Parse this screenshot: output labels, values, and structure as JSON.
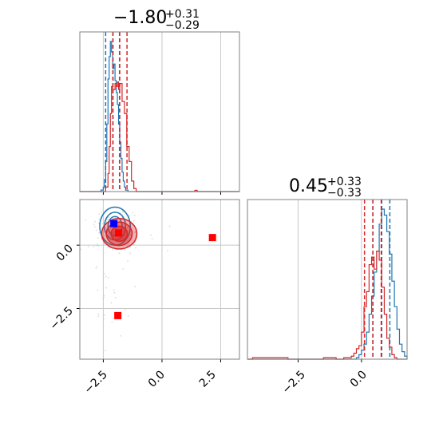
{
  "chart_data": {
    "type": "corner",
    "parameters": [
      {
        "title_main": "−1.80",
        "title_sup": "+0.31",
        "title_sub": "−0.29",
        "median": -1.8,
        "lower_err": 0.29,
        "upper_err": 0.31
      },
      {
        "title_main": "0.45",
        "title_sup": "+0.33",
        "title_sub": "−0.33",
        "median": 0.45,
        "lower_err": 0.33,
        "upper_err": 0.33
      }
    ],
    "panels": [
      {
        "id": "hist-param1",
        "type": "histogram",
        "xlim": [
          -3.5,
          3.3
        ],
        "grid": true,
        "series": [
          {
            "color": "#1f77b4",
            "bins": [
              [
                -3.5,
                0
              ],
              [
                -2.7,
                0
              ],
              [
                -2.6,
                0.01
              ],
              [
                -2.5,
                0.03
              ],
              [
                -2.45,
                0.08
              ],
              [
                -2.4,
                0.2
              ],
              [
                -2.35,
                0.45
              ],
              [
                -2.3,
                0.75
              ],
              [
                -2.25,
                0.9
              ],
              [
                -2.2,
                1.0
              ],
              [
                -2.15,
                0.93
              ],
              [
                -2.1,
                0.82
              ],
              [
                -2.05,
                0.85
              ],
              [
                -2.0,
                0.74
              ],
              [
                -1.95,
                0.66
              ],
              [
                -1.9,
                0.58
              ],
              [
                -1.85,
                0.45
              ],
              [
                -1.8,
                0.33
              ],
              [
                -1.75,
                0.22
              ],
              [
                -1.7,
                0.13
              ],
              [
                -1.65,
                0.07
              ],
              [
                -1.6,
                0.03
              ],
              [
                -1.55,
                0.01
              ],
              [
                -1.45,
                0
              ],
              [
                3.3,
                0
              ]
            ],
            "quantile_lines": [
              -2.4,
              -2.09,
              -1.81
            ]
          },
          {
            "color": "#d62728",
            "bins": [
              [
                -3.5,
                0
              ],
              [
                -2.5,
                0
              ],
              [
                -2.4,
                0.03
              ],
              [
                -2.3,
                0.12
              ],
              [
                -2.25,
                0.3
              ],
              [
                -2.2,
                0.52
              ],
              [
                -2.15,
                0.7
              ],
              [
                -2.1,
                0.68
              ],
              [
                -2.0,
                0.72
              ],
              [
                -1.95,
                0.7
              ],
              [
                -1.9,
                0.73
              ],
              [
                -1.85,
                0.68
              ],
              [
                -1.8,
                0.72
              ],
              [
                -1.7,
                0.6
              ],
              [
                -1.6,
                0.52
              ],
              [
                -1.5,
                0.3
              ],
              [
                -1.4,
                0.2
              ],
              [
                -1.3,
                0.07
              ],
              [
                -1.2,
                0.02
              ],
              [
                -1.1,
                0
              ],
              [
                1.3,
                0
              ],
              [
                1.4,
                0.008
              ],
              [
                1.5,
                0
              ],
              [
                3.3,
                0
              ]
            ],
            "quantile_lines": [
              -2.09,
              -1.8,
              -1.49
            ]
          }
        ]
      },
      {
        "id": "hist-param2",
        "type": "histogram",
        "xlim": [
          -4.5,
          1.8
        ],
        "grid": true,
        "series": [
          {
            "color": "#1f77b4",
            "bins": [
              [
                -4.5,
                0
              ],
              [
                -0.3,
                0
              ],
              [
                -0.2,
                0.01
              ],
              [
                -0.1,
                0.03
              ],
              [
                0.0,
                0.06
              ],
              [
                0.1,
                0.1
              ],
              [
                0.2,
                0.18
              ],
              [
                0.3,
                0.3
              ],
              [
                0.4,
                0.42
              ],
              [
                0.5,
                0.58
              ],
              [
                0.6,
                0.72
              ],
              [
                0.7,
                0.9
              ],
              [
                0.8,
                1.0
              ],
              [
                0.9,
                0.96
              ],
              [
                1.0,
                0.85
              ],
              [
                1.1,
                0.7
              ],
              [
                1.2,
                0.52
              ],
              [
                1.3,
                0.35
              ],
              [
                1.4,
                0.2
              ],
              [
                1.5,
                0.1
              ],
              [
                1.6,
                0.05
              ],
              [
                1.7,
                0.02
              ],
              [
                1.8,
                0
              ]
            ],
            "quantile_lines": [
              0.45,
              0.8,
              1.12
            ]
          },
          {
            "color": "#d62728",
            "bins": [
              [
                -4.5,
                0
              ],
              [
                -4.3,
                0.01
              ],
              [
                -3.3,
                0.01
              ],
              [
                -2.9,
                0
              ],
              [
                -1.6,
                0
              ],
              [
                -1.5,
                0.01
              ],
              [
                -1.0,
                0
              ],
              [
                -0.7,
                0.01
              ],
              [
                -0.4,
                0.02
              ],
              [
                -0.3,
                0.04
              ],
              [
                -0.2,
                0.07
              ],
              [
                -0.1,
                0.09
              ],
              [
                0.0,
                0.18
              ],
              [
                0.1,
                0.35
              ],
              [
                0.2,
                0.45
              ],
              [
                0.3,
                0.63
              ],
              [
                0.4,
                0.68
              ],
              [
                0.5,
                0.6
              ],
              [
                0.6,
                0.72
              ],
              [
                0.7,
                0.66
              ],
              [
                0.8,
                0.48
              ],
              [
                0.9,
                0.3
              ],
              [
                1.0,
                0.14
              ],
              [
                1.1,
                0.08
              ],
              [
                1.2,
                0.03
              ],
              [
                1.3,
                0.01
              ],
              [
                1.4,
                0
              ],
              [
                1.8,
                0
              ]
            ],
            "quantile_lines": [
              0.12,
              0.45,
              0.78
            ]
          }
        ]
      },
      {
        "id": "scatter-2d",
        "type": "scatter-contour",
        "xlim": [
          -3.5,
          3.3
        ],
        "ylim": [
          -4.5,
          1.8
        ],
        "grid": true,
        "xticks": [
          -2.5,
          0.0,
          2.5
        ],
        "yticks": [
          -2.5,
          0.0
        ],
        "markers": [
          {
            "color": "#0000ff",
            "shape": "square",
            "x": -2.05,
            "y": 0.85
          },
          {
            "color": "#ff0000",
            "shape": "square",
            "x": -1.85,
            "y": 0.48
          },
          {
            "color": "#ff0000",
            "shape": "square",
            "x": 2.15,
            "y": 0.3
          },
          {
            "color": "#ff0000",
            "shape": "square",
            "x": -1.88,
            "y": -2.78
          }
        ],
        "contours": [
          {
            "color": "#1f77b4",
            "center": [
              -2.0,
              0.75
            ],
            "radii": [
              [
                0.65,
                0.75
              ],
              [
                0.45,
                0.55
              ],
              [
                0.3,
                0.38
              ]
            ]
          },
          {
            "color": "#d62728",
            "center": [
              -1.82,
              0.45
            ],
            "radii": [
              [
                0.75,
                0.6
              ],
              [
                0.55,
                0.46
              ],
              [
                0.35,
                0.3
              ]
            ]
          }
        ]
      }
    ],
    "tick_labels": {
      "col1_x": [
        "−2.5",
        "0.0",
        "2.5"
      ],
      "col2_x": [
        "−2.5",
        "0.0"
      ],
      "row2_y": [
        "0.0",
        "−2.5"
      ]
    }
  }
}
